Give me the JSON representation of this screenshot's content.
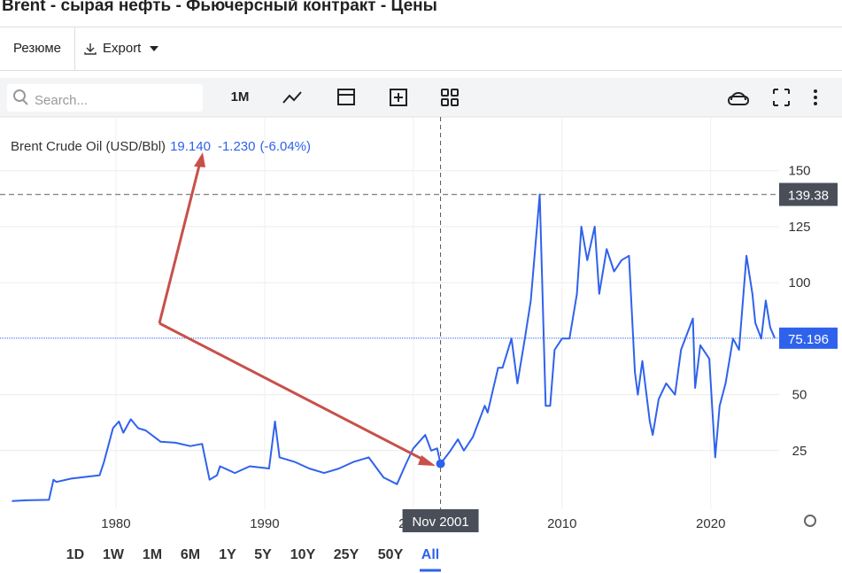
{
  "title": "Brent - сырая нефть - Фьючерсный контракт - Цены",
  "tabs": [
    "Резюме",
    "Export"
  ],
  "toolbar": {
    "search_placeholder": "Search...",
    "interval": "1M"
  },
  "ranges": [
    "1D",
    "1W",
    "1M",
    "6M",
    "1Y",
    "5Y",
    "10Y",
    "25Y",
    "50Y",
    "All"
  ],
  "active_range_index": 9,
  "chart_data": {
    "type": "line",
    "x": [
      1973.0,
      1974.0,
      1975.5,
      1975.8,
      1976.0,
      1977.0,
      1978.9,
      1979.2,
      1979.8,
      1980.2,
      1980.5,
      1981.0,
      1981.5,
      1982.0,
      1983.0,
      1984.0,
      1985.0,
      1985.8,
      1986.3,
      1986.8,
      1987.0,
      1988.0,
      1989.0,
      1990.3,
      1990.7,
      1991.0,
      1992.0,
      1993.0,
      1994.0,
      1995.0,
      1996.0,
      1997.0,
      1998.0,
      1998.9,
      1999.5,
      2000.0,
      2000.8,
      2001.2,
      2001.6,
      2001.83,
      2002.5,
      2003.0,
      2003.4,
      2004.0,
      2004.8,
      2005.0,
      2005.7,
      2006.0,
      2006.6,
      2007.0,
      2007.5,
      2007.9,
      2008.5,
      2008.9,
      2009.2,
      2009.5,
      2010.0,
      2010.5,
      2011.0,
      2011.3,
      2011.7,
      2012.2,
      2012.5,
      2013.0,
      2013.5,
      2014.0,
      2014.5,
      2014.9,
      2015.1,
      2015.4,
      2015.9,
      2016.1,
      2016.5,
      2017.0,
      2017.6,
      2018.0,
      2018.8,
      2018.95,
      2019.3,
      2019.9,
      2020.3,
      2020.6,
      2021.0,
      2021.5,
      2021.9,
      2022.4,
      2022.8,
      2023.0,
      2023.4,
      2023.7,
      2024.0,
      2024.3
    ],
    "series": [
      {
        "name": "Brent Crude Oil (USD/Bbl)",
        "color": "#2f62ec",
        "values": [
          2.5,
          2.8,
          3,
          12,
          11,
          12.5,
          14,
          20,
          35,
          38,
          33,
          39,
          35,
          34,
          29,
          28.5,
          27,
          28,
          12,
          14,
          18,
          15,
          18,
          17,
          38,
          22,
          20,
          17,
          15,
          17,
          20,
          22,
          13,
          10,
          19,
          26,
          32,
          25,
          26,
          19.14,
          25,
          30,
          25,
          31,
          45,
          42,
          62,
          62,
          75,
          55,
          75,
          92,
          139.38,
          45,
          45,
          70,
          75,
          75,
          95,
          125,
          110,
          125,
          95,
          115,
          105,
          110,
          112,
          60,
          50,
          65,
          38,
          32,
          48,
          55,
          50,
          70,
          84,
          53,
          72,
          66,
          22,
          45,
          55,
          75,
          70,
          112,
          95,
          82,
          75,
          92,
          80,
          75.196
        ]
      }
    ],
    "xlim": [
      1972.8,
      2024.6
    ],
    "ylim": [
      0,
      174
    ],
    "xticks": [
      1980,
      1990,
      2000,
      2010,
      2020
    ],
    "yticks": [
      25,
      50,
      100,
      125,
      150
    ],
    "grid": true,
    "max_price": 139.38,
    "last_price": 75.196,
    "crosshair": {
      "x": 2001.83,
      "label": "Nov 2001",
      "value": {
        "value": 19.14,
        "label": "19.140"
      },
      "change": "-1.230",
      "change_pct": "(-6.04%)"
    }
  }
}
